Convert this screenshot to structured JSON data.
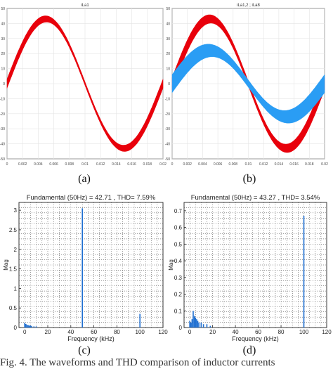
{
  "chart_data": [
    {
      "id": "a",
      "type": "line",
      "title": "iLa1",
      "xlabel": "",
      "ylabel": "",
      "xlim": [
        0,
        0.02
      ],
      "ylim": [
        -50,
        50
      ],
      "xticks": [
        "0",
        "0.002",
        "0.004",
        "0.006",
        "0.008",
        "0.01",
        "0.012",
        "0.014",
        "0.016",
        "0.018",
        "0.02"
      ],
      "yticks": [
        "50",
        "40",
        "30",
        "20",
        "10",
        "0",
        "-10",
        "-20",
        "-30",
        "-40",
        "-50"
      ],
      "series": [
        {
          "color": "#e8000b",
          "amplitude": 43,
          "ripple": 3,
          "frequency_hz": 50
        }
      ],
      "caption": "(a)"
    },
    {
      "id": "b",
      "type": "line",
      "title": "iLa1,2 ; iLa8",
      "xlabel": "",
      "ylabel": "",
      "xlim": [
        0,
        0.02
      ],
      "ylim": [
        -50,
        50
      ],
      "xticks": [
        "0",
        "0.002",
        "0.004",
        "0.006",
        "0.008",
        "0.01",
        "0.012",
        "0.014",
        "0.016",
        "0.018",
        "0.02"
      ],
      "yticks": [
        "50",
        "40",
        "30",
        "20",
        "10",
        "0",
        "-10",
        "-20",
        "-30",
        "-40",
        "-50"
      ],
      "series": [
        {
          "color": "#e8000b",
          "amplitude": 43,
          "ripple": 4,
          "frequency_hz": 50
        },
        {
          "color": "#2a9df4",
          "amplitude": 22,
          "ripple": 6,
          "frequency_hz": 50
        }
      ],
      "caption": "(b)"
    },
    {
      "id": "c",
      "type": "bar",
      "title": "Fundamental (50Hz) = 42.71 , THD= 7.59%",
      "xlabel": "Frequency (kHz)",
      "ylabel": "Mag",
      "xlim": [
        -5,
        120
      ],
      "ylim": [
        0,
        3.2
      ],
      "xticks": [
        0,
        20,
        40,
        60,
        80,
        100,
        120
      ],
      "yticks": [
        0,
        0.5,
        1,
        1.5,
        2,
        2.5,
        3
      ],
      "bars": [
        {
          "x": 0,
          "y": 0.12
        },
        {
          "x": 1,
          "y": 0.09
        },
        {
          "x": 2,
          "y": 0.07
        },
        {
          "x": 3,
          "y": 0.06
        },
        {
          "x": 4,
          "y": 0.05
        },
        {
          "x": 5,
          "y": 0.05
        },
        {
          "x": 6,
          "y": 0.04
        },
        {
          "x": 8,
          "y": 0.03
        },
        {
          "x": 10,
          "y": 0.03
        },
        {
          "x": 50,
          "y": 3.05
        },
        {
          "x": 100,
          "y": 0.35
        }
      ],
      "caption": "(c)"
    },
    {
      "id": "d",
      "type": "bar",
      "title": "Fundamental (50Hz) = 43.27 , THD= 3.54%",
      "xlabel": "Frequency (kHz)",
      "ylabel": "Mag",
      "xlim": [
        -5,
        120
      ],
      "ylim": [
        0,
        0.75
      ],
      "xticks": [
        0,
        20,
        40,
        60,
        80,
        100,
        120
      ],
      "yticks": [
        0,
        0.1,
        0.2,
        0.3,
        0.4,
        0.5,
        0.6,
        0.7
      ],
      "bars": [
        {
          "x": 0,
          "y": 0.04
        },
        {
          "x": 1,
          "y": 0.03
        },
        {
          "x": 2,
          "y": 0.05
        },
        {
          "x": 3,
          "y": 0.1
        },
        {
          "x": 4,
          "y": 0.07
        },
        {
          "x": 5,
          "y": 0.06
        },
        {
          "x": 6,
          "y": 0.05
        },
        {
          "x": 7,
          "y": 0.04
        },
        {
          "x": 8,
          "y": 0.03
        },
        {
          "x": 10,
          "y": 0.03
        },
        {
          "x": 12,
          "y": 0.02
        },
        {
          "x": 15,
          "y": 0.02
        },
        {
          "x": 18,
          "y": 0.01
        },
        {
          "x": 100,
          "y": 0.67
        }
      ],
      "caption": "(d)"
    }
  ],
  "figure_caption": "Fig. 4.  The waveforms and THD comparison of inductor currents"
}
